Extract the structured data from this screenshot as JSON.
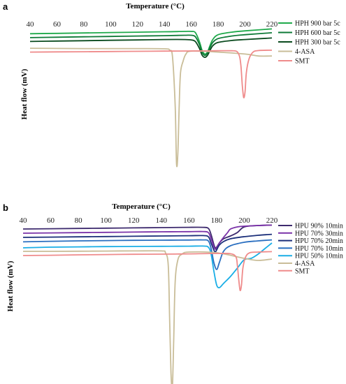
{
  "chart_data": [
    {
      "type": "line",
      "panel": "a",
      "xlabel": "Temperature (°C)",
      "ylabel": "Heat flow (mV)",
      "xlim": [
        40,
        220
      ],
      "xticks": [
        40,
        60,
        80,
        100,
        120,
        140,
        160,
        180,
        200,
        220
      ],
      "legend_position": "right",
      "grid": false,
      "series": [
        {
          "name": "HPH 900 bar 5c",
          "color": "#1faa4b",
          "x": [
            40,
            60,
            80,
            100,
            120,
            140,
            155,
            160,
            163,
            166,
            168,
            170,
            172,
            174,
            176,
            180,
            190,
            200,
            220
          ],
          "y": [
            12,
            12.2,
            12.4,
            12.6,
            12.8,
            13,
            13.2,
            13.2,
            12.6,
            8,
            3.5,
            1.5,
            2.5,
            6,
            9,
            11.5,
            12.8,
            13.5,
            14.5
          ]
        },
        {
          "name": "HPH 600 bar 5c",
          "color": "#0e7a37",
          "x": [
            40,
            60,
            80,
            100,
            120,
            140,
            155,
            160,
            163,
            166,
            168,
            170,
            172,
            174,
            176,
            180,
            190,
            200,
            220
          ],
          "y": [
            10,
            10.2,
            10.4,
            10.6,
            10.8,
            11,
            11.2,
            11.2,
            10.5,
            6.5,
            2.5,
            0.8,
            2,
            5,
            7.5,
            9.5,
            10.8,
            11.5,
            12.5
          ]
        },
        {
          "name": "HPH 300 bar 5c",
          "color": "#0a4a1e",
          "x": [
            40,
            60,
            80,
            100,
            120,
            140,
            155,
            160,
            163,
            166,
            168,
            170,
            172,
            174,
            176,
            180,
            190,
            200,
            220
          ],
          "y": [
            8,
            8.2,
            8.4,
            8.6,
            8.8,
            9,
            9,
            8.8,
            8,
            4.5,
            1,
            -0.2,
            0.8,
            3.5,
            5.8,
            7.5,
            8.5,
            9,
            9.8
          ]
        },
        {
          "name": "4-ASA",
          "color": "#c9bd98",
          "x": [
            40,
            60,
            80,
            100,
            120,
            140,
            144,
            146,
            148,
            149,
            150,
            151,
            152,
            154,
            156,
            160,
            180,
            200,
            210,
            220
          ],
          "y": [
            4.5,
            4.4,
            4.3,
            4.3,
            4.3,
            4.2,
            3.5,
            0,
            -25,
            -55,
            -50,
            -25,
            -8,
            -2,
            1.5,
            3,
            2.5,
            1.5,
            0.5,
            0.5
          ]
        },
        {
          "name": "SMT",
          "color": "#ef8b8b",
          "x": [
            40,
            60,
            80,
            100,
            120,
            140,
            160,
            180,
            190,
            194,
            196,
            197,
            198,
            199,
            200,
            201,
            203,
            206,
            210,
            220
          ],
          "y": [
            2.5,
            2.6,
            2.7,
            2.8,
            2.9,
            3,
            3.1,
            3.2,
            3.2,
            2.8,
            0,
            -5,
            -15,
            -21,
            -18,
            -8,
            -1,
            2.5,
            3.3,
            3.5
          ]
        }
      ]
    },
    {
      "type": "line",
      "panel": "b",
      "xlabel": "Temperature (°C)",
      "ylabel": "Heat flow (mV)",
      "xlim": [
        40,
        220
      ],
      "xticks": [
        40,
        60,
        80,
        100,
        120,
        140,
        160,
        180,
        200,
        220
      ],
      "legend_position": "right",
      "grid": false,
      "series": [
        {
          "name": "HPU 90% 10min",
          "color": "#3d2a6e",
          "x": [
            40,
            60,
            80,
            100,
            120,
            140,
            160,
            170,
            174,
            176,
            178,
            179,
            180,
            182,
            185,
            190,
            195,
            200,
            210,
            220
          ],
          "y": [
            18,
            18.2,
            18.4,
            18.6,
            18.8,
            19,
            19.2,
            19.2,
            18.5,
            14,
            7,
            4.5,
            5,
            8,
            11,
            13,
            15.5,
            19.5,
            20.5,
            20.8
          ]
        },
        {
          "name": "HPU 70% 30min",
          "color": "#7a32a8",
          "x": [
            40,
            60,
            80,
            100,
            120,
            140,
            160,
            170,
            174,
            176,
            178,
            179,
            180,
            182,
            185,
            188,
            190,
            195,
            200,
            210,
            220
          ],
          "y": [
            15,
            15.2,
            15.4,
            15.6,
            15.8,
            16,
            16.1,
            16.2,
            15.5,
            11,
            5.5,
            3.5,
            4.5,
            8,
            12,
            15.5,
            18,
            19.5,
            20,
            20.5,
            20.8
          ]
        },
        {
          "name": "HPU 70% 20min",
          "color": "#1c2f7a",
          "x": [
            40,
            60,
            80,
            100,
            120,
            140,
            160,
            170,
            174,
            176,
            178,
            179,
            180,
            182,
            185,
            190,
            200,
            210,
            220
          ],
          "y": [
            12,
            12.2,
            12.4,
            12.6,
            12.8,
            13,
            13.2,
            13.3,
            12.5,
            8,
            3,
            1.5,
            3,
            6.5,
            9,
            11,
            12.5,
            13.5,
            14.2
          ]
        },
        {
          "name": "HPU 70% 10min",
          "color": "#2a6fc0",
          "x": [
            40,
            60,
            80,
            100,
            120,
            140,
            160,
            170,
            174,
            176,
            178,
            180,
            182,
            185,
            190,
            200,
            210,
            220
          ],
          "y": [
            8.8,
            9.2,
            9.5,
            9.7,
            9.9,
            10,
            10.1,
            10.2,
            9.5,
            4,
            -6,
            -11,
            -6,
            2,
            6,
            8.5,
            9.5,
            10.2
          ]
        },
        {
          "name": "HPU 50% 10min",
          "color": "#1aaee6",
          "x": [
            40,
            60,
            80,
            100,
            120,
            140,
            160,
            170,
            174,
            176,
            178,
            180,
            182,
            185,
            190,
            195,
            200,
            205,
            210,
            215,
            220
          ],
          "y": [
            4.5,
            5,
            5.2,
            5.4,
            5.5,
            5.6,
            5.7,
            5.8,
            5,
            0,
            -12,
            -22,
            -24,
            -21,
            -16,
            -10,
            -4,
            -3,
            0,
            4,
            8
          ]
        },
        {
          "name": "4-ASA",
          "color": "#c9bd98",
          "x": [
            40,
            60,
            80,
            100,
            120,
            140,
            143,
            145,
            146,
            147,
            148,
            149,
            150,
            152,
            155,
            160,
            180,
            200,
            210,
            220
          ],
          "y": [
            2,
            2,
            2.1,
            2.2,
            2.3,
            2.3,
            1,
            -8,
            -45,
            -85,
            -95,
            -60,
            -20,
            -4,
            0,
            1.5,
            1,
            -3,
            -4.5,
            -3.5
          ]
        },
        {
          "name": "SMT",
          "color": "#ef8b8b",
          "x": [
            40,
            60,
            80,
            100,
            120,
            140,
            160,
            180,
            190,
            194,
            195,
            196,
            197,
            198,
            199,
            201,
            204,
            210,
            220
          ],
          "y": [
            -1,
            -0.8,
            -0.5,
            -0.3,
            -0.1,
            0,
            0.2,
            0.5,
            0.3,
            -2,
            -8,
            -18,
            -26,
            -22,
            -10,
            -2,
            1,
            1.5,
            1.8
          ]
        }
      ]
    }
  ]
}
